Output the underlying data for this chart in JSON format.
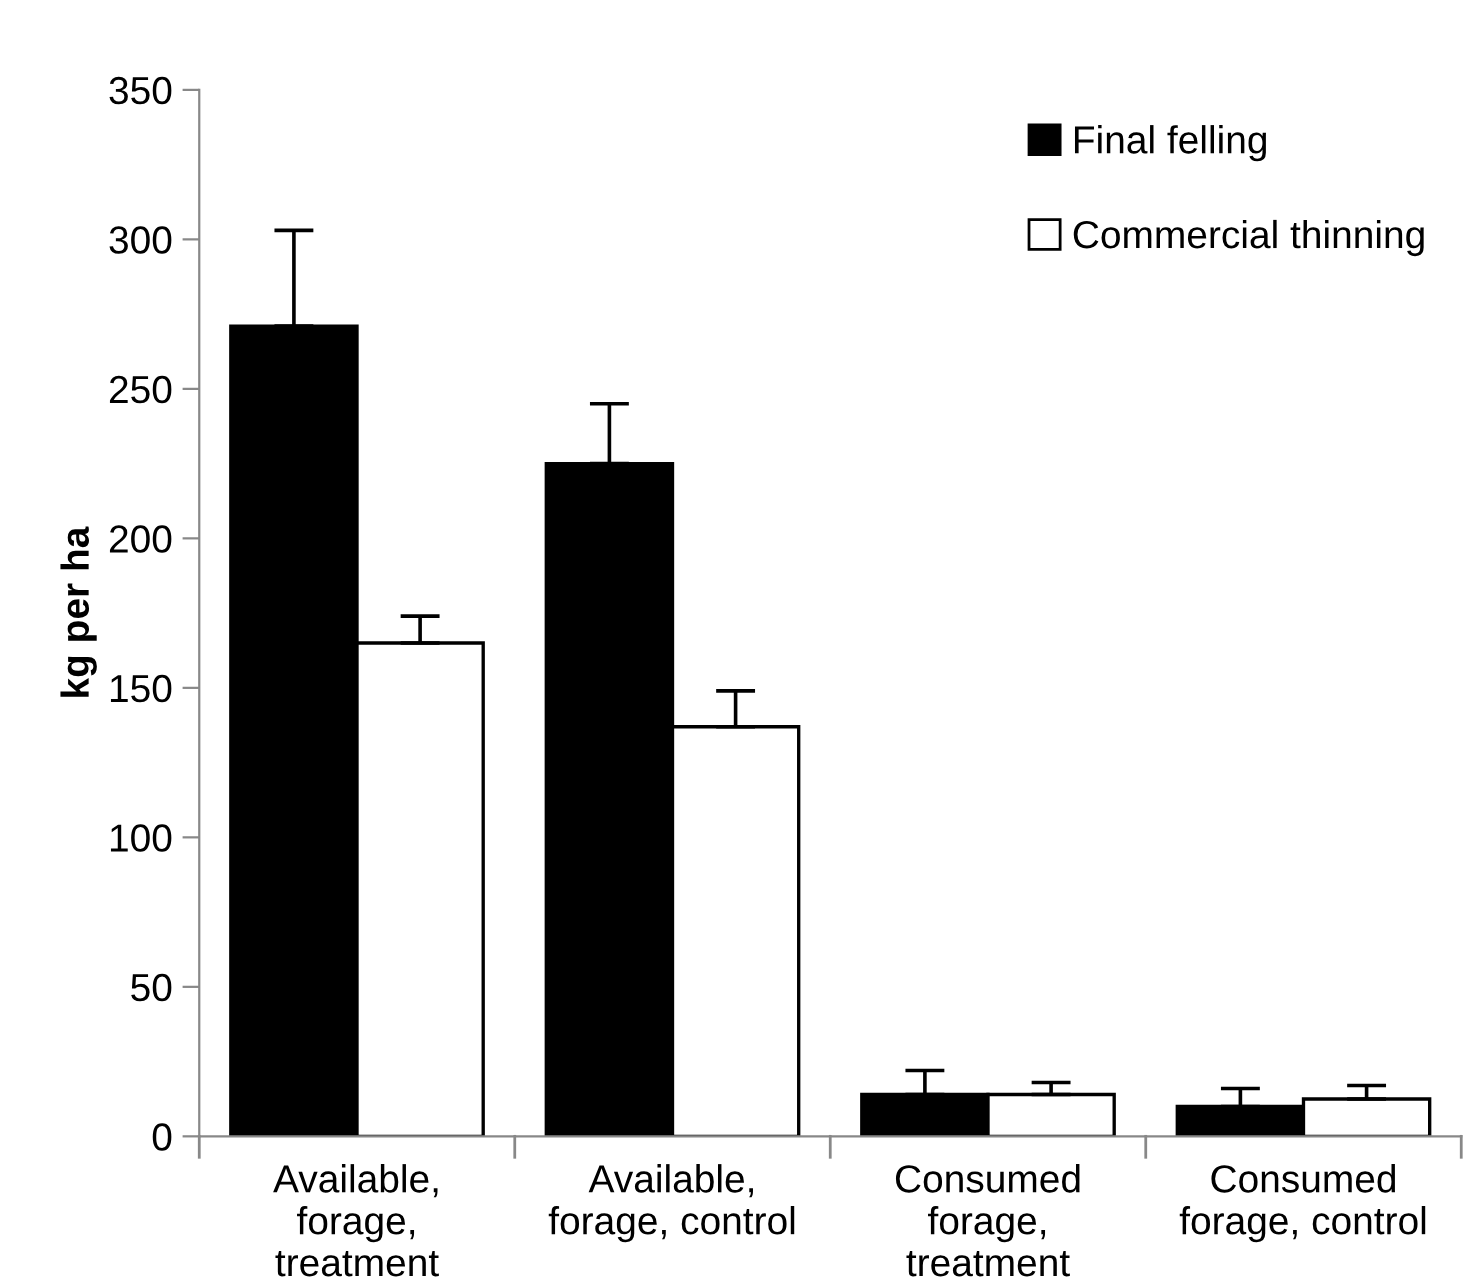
{
  "chart_data": {
    "type": "bar",
    "ylabel": "kg per ha",
    "categories": [
      "Available,\nforage,\ntreatment",
      "Available,\nforage, control",
      "Consumed\nforage,\ntreatment",
      "Consumed\nforage, control"
    ],
    "series": [
      {
        "name": "Final felling",
        "color": "#000000",
        "values": [
          271,
          225,
          14,
          10
        ],
        "errors": [
          [
            271,
            303
          ],
          [
            225,
            245
          ],
          [
            14,
            22
          ],
          [
            10,
            16
          ]
        ]
      },
      {
        "name": "Commercial thinning",
        "color": "#ffffff",
        "values": [
          165,
          137,
          14,
          12.5
        ],
        "errors": [
          [
            165,
            174
          ],
          [
            137,
            149
          ],
          [
            14,
            18
          ],
          [
            12.5,
            17
          ]
        ]
      }
    ],
    "ylim": [
      0,
      350
    ],
    "yticks": [
      0,
      50,
      100,
      150,
      200,
      250,
      300,
      350
    ],
    "grid": false,
    "legend": "top right"
  }
}
